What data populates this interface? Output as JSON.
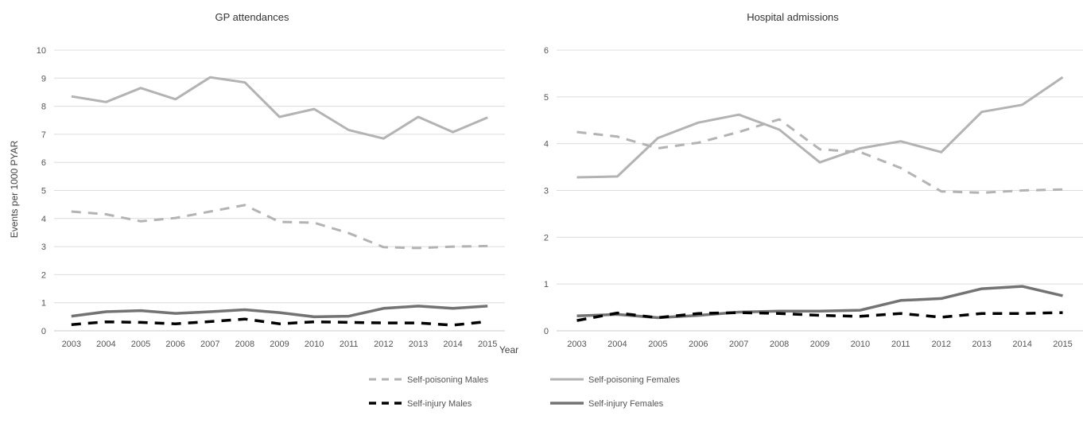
{
  "shared": {
    "xlabel": "Year",
    "ylabel": "Events per 1000 PYAR",
    "legend": [
      {
        "label": "Self-poisoning Males",
        "color": "#b3b3b3",
        "dash": true
      },
      {
        "label": "Self-poisoning Females",
        "color": "#b3b3b3",
        "dash": false
      },
      {
        "label": "Self-injury Males",
        "color": "#000000",
        "dash": true
      },
      {
        "label": "Self-injury Females",
        "color": "#737373",
        "dash": false
      }
    ]
  },
  "chart_data": [
    {
      "type": "line",
      "title": "GP attendances",
      "xlabel": "Year",
      "ylabel": "Events per 1000 PYAR",
      "x": [
        "2003",
        "2004",
        "2005",
        "2006",
        "2007",
        "2008",
        "2009",
        "2010",
        "2011",
        "2012",
        "2013",
        "2014",
        "2015"
      ],
      "ylim": [
        0,
        10
      ],
      "yticks": [
        "0",
        "1",
        "2",
        "3",
        "4",
        "5",
        "6",
        "7",
        "8",
        "9",
        "10"
      ],
      "grid": true,
      "legend_position": "bottom",
      "series": [
        {
          "name": "Self-poisoning Males",
          "color": "#b3b3b3",
          "dash": true,
          "values": [
            4.25,
            4.15,
            3.9,
            4.02,
            4.25,
            4.48,
            3.88,
            3.85,
            3.48,
            2.98,
            2.95,
            3.0,
            3.02
          ]
        },
        {
          "name": "Self-poisoning Females",
          "color": "#b3b3b3",
          "dash": false,
          "values": [
            8.35,
            8.15,
            8.65,
            8.25,
            9.03,
            8.85,
            7.62,
            7.9,
            7.15,
            6.85,
            7.62,
            7.08,
            7.6
          ]
        },
        {
          "name": "Self-injury Males",
          "color": "#000000",
          "dash": true,
          "values": [
            0.22,
            0.32,
            0.3,
            0.25,
            0.33,
            0.42,
            0.25,
            0.32,
            0.3,
            0.28,
            0.28,
            0.2,
            0.33
          ]
        },
        {
          "name": "Self-injury Females",
          "color": "#737373",
          "dash": false,
          "values": [
            0.52,
            0.68,
            0.72,
            0.62,
            0.68,
            0.75,
            0.65,
            0.5,
            0.52,
            0.8,
            0.88,
            0.8,
            0.88
          ]
        }
      ]
    },
    {
      "type": "line",
      "title": "Hospital admissions",
      "xlabel": "Year",
      "ylabel": "",
      "x": [
        "2003",
        "2004",
        "2005",
        "2006",
        "2007",
        "2008",
        "2009",
        "2010",
        "2011",
        "2012",
        "2013",
        "2014",
        "2015"
      ],
      "ylim": [
        0,
        6
      ],
      "yticks": [
        "0",
        "1",
        "2",
        "3",
        "4",
        "5",
        "6"
      ],
      "grid": true,
      "legend_position": "bottom",
      "series": [
        {
          "name": "Self-poisoning Males",
          "color": "#b3b3b3",
          "dash": true,
          "values": [
            4.25,
            4.15,
            3.9,
            4.02,
            4.25,
            4.52,
            3.88,
            3.82,
            3.48,
            2.98,
            2.95,
            3.0,
            3.02
          ]
        },
        {
          "name": "Self-poisoning Females",
          "color": "#b3b3b3",
          "dash": false,
          "values": [
            3.28,
            3.3,
            4.12,
            4.45,
            4.62,
            4.3,
            3.6,
            3.9,
            4.05,
            3.82,
            4.68,
            4.83,
            5.42
          ]
        },
        {
          "name": "Self-injury Males",
          "color": "#000000",
          "dash": true,
          "values": [
            0.22,
            0.38,
            0.28,
            0.37,
            0.39,
            0.37,
            0.33,
            0.31,
            0.37,
            0.29,
            0.37,
            0.37,
            0.39
          ]
        },
        {
          "name": "Self-injury Females",
          "color": "#737373",
          "dash": false,
          "values": [
            0.32,
            0.35,
            0.28,
            0.33,
            0.4,
            0.42,
            0.42,
            0.44,
            0.65,
            0.69,
            0.9,
            0.95,
            0.75
          ]
        }
      ]
    }
  ]
}
